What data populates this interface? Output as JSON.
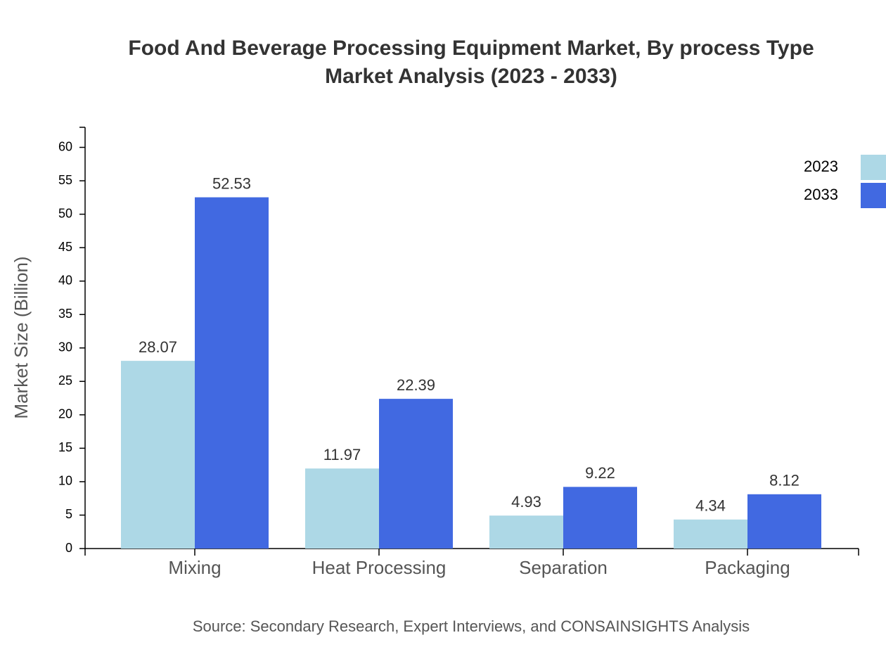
{
  "chart_data": {
    "type": "bar",
    "title": "Food And Beverage Processing Equipment Market, By process Type",
    "subtitle": "Market Analysis (2023 - 2033)",
    "y_label": "Market Size (Billion)",
    "source": "Source: Secondary Research, Expert Interviews, and CONSAINSIGHTS Analysis",
    "categories": [
      "Mixing",
      "Heat Processing",
      "Separation",
      "Packaging"
    ],
    "series": [
      {
        "name": "2023",
        "color": "#add8e6",
        "values": [
          28.07,
          11.97,
          4.93,
          4.34
        ]
      },
      {
        "name": "2033",
        "color": "#4169e1",
        "values": [
          52.53,
          22.39,
          9.22,
          8.12
        ]
      }
    ],
    "ylim": [
      0,
      63
    ],
    "yticks": [
      0,
      5,
      10,
      15,
      20,
      25,
      30,
      35,
      40,
      45,
      50,
      55,
      60
    ],
    "legend": "top-right"
  }
}
